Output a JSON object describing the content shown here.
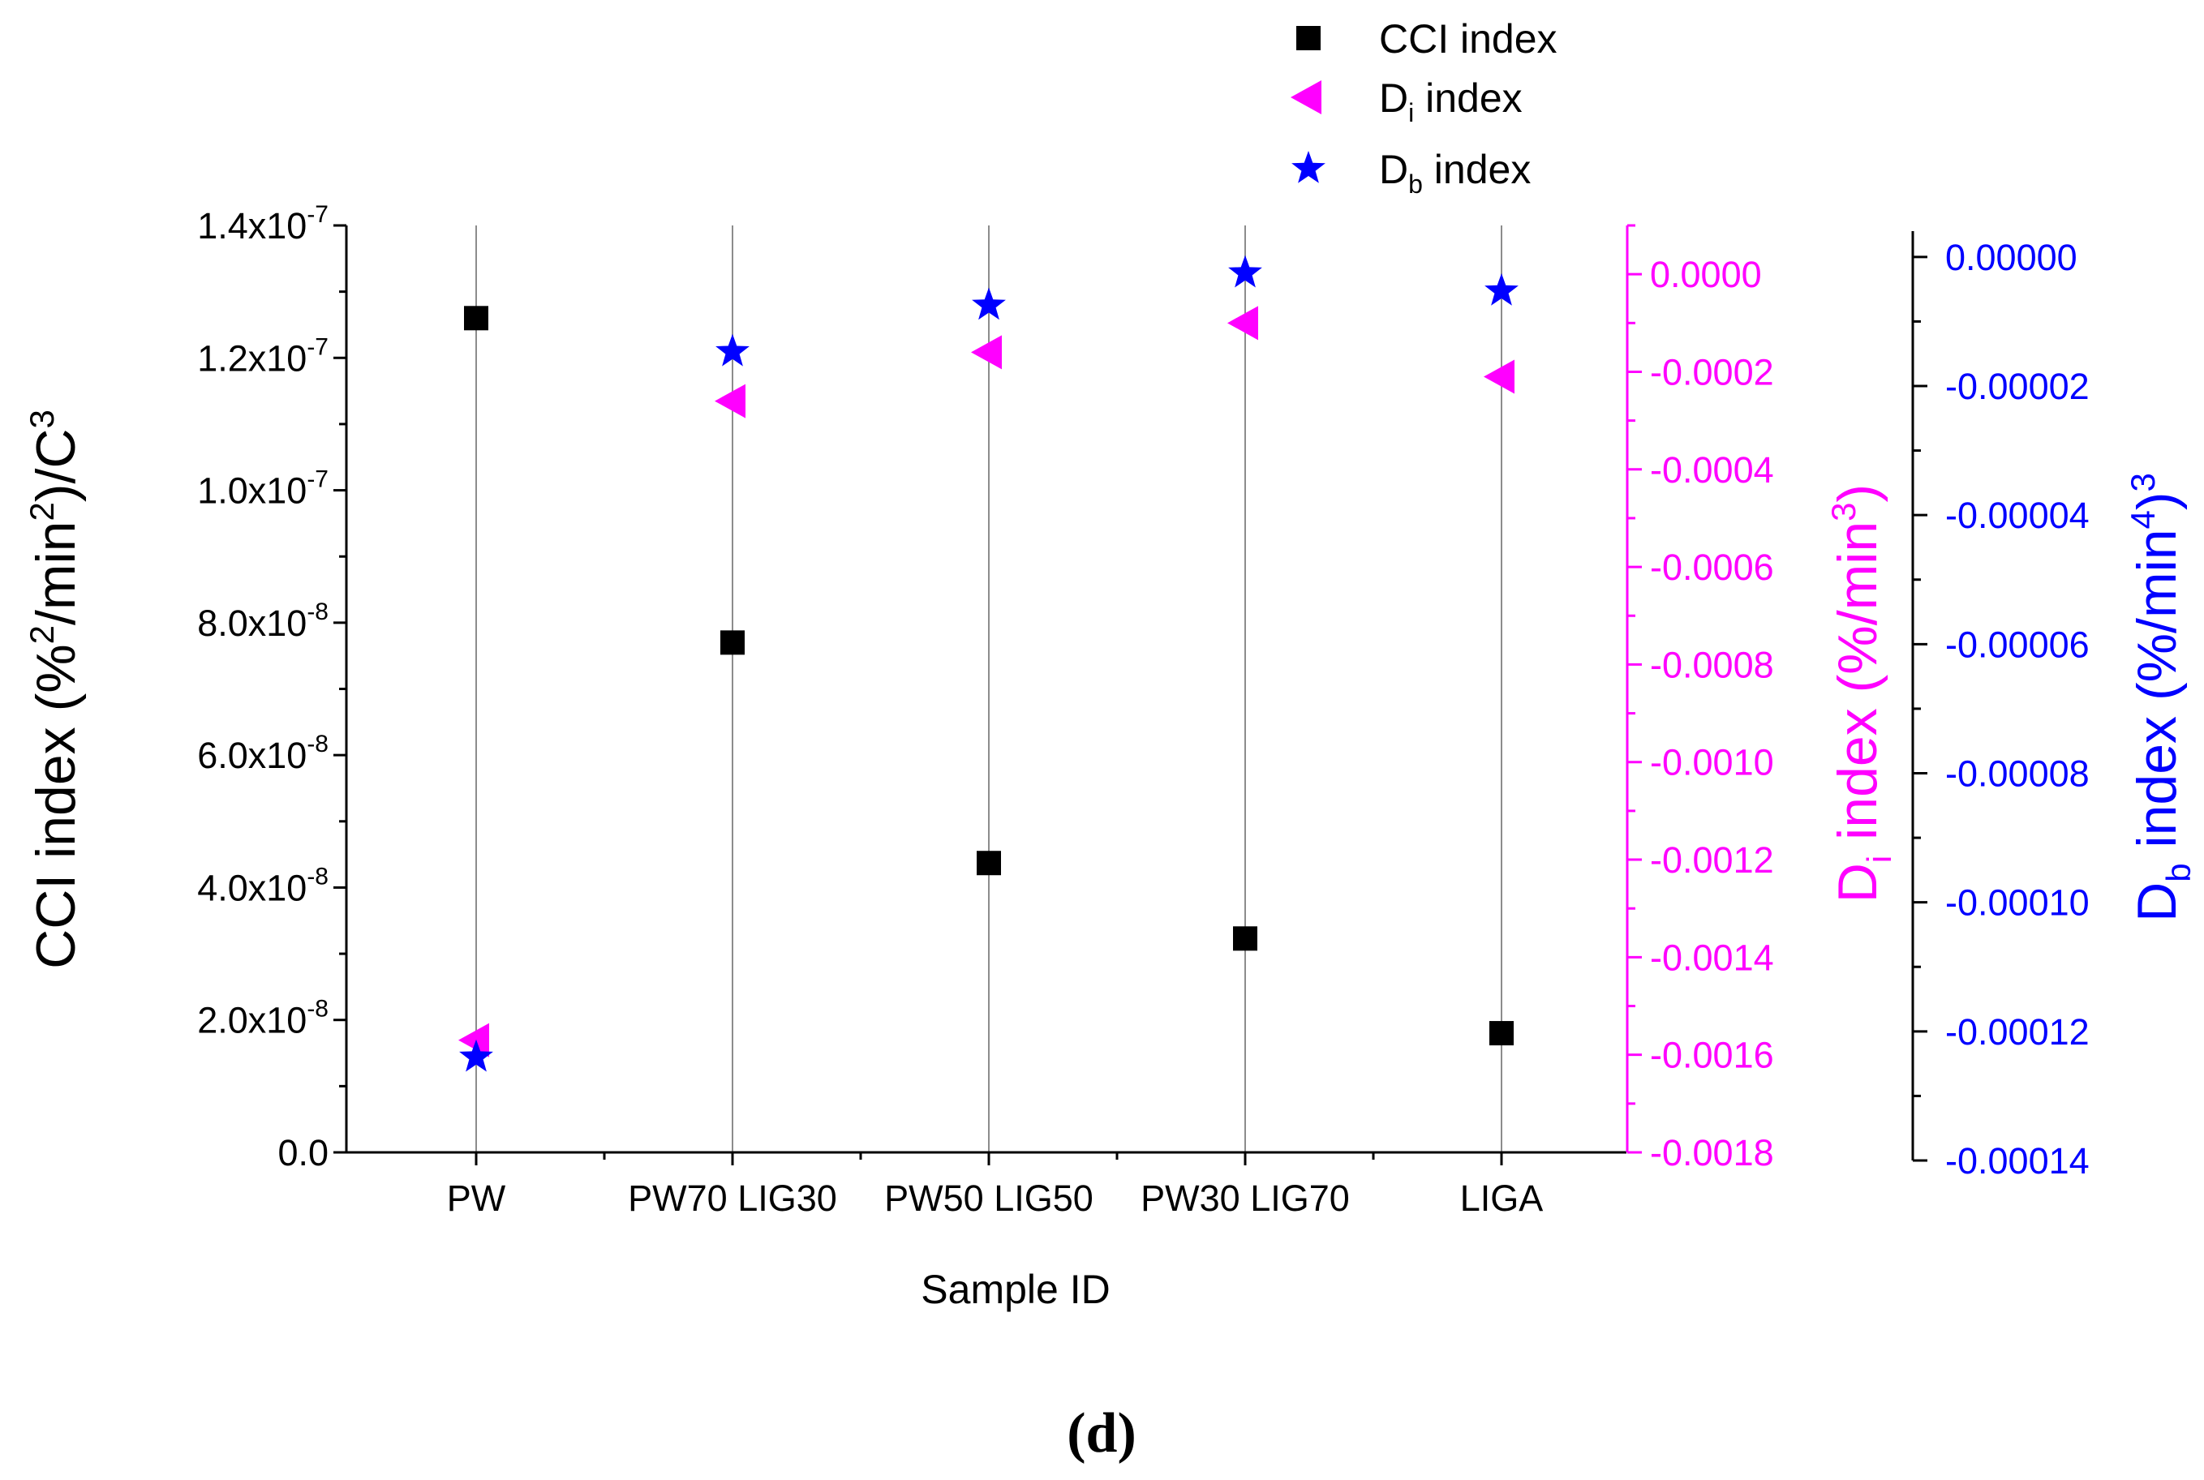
{
  "chart_data": {
    "type": "scatter",
    "categories": [
      "PW",
      "PW70 LIG30",
      "PW50 LIG50",
      "PW30 LIG70",
      "LIGA"
    ],
    "xlabel": "Sample ID",
    "panel_label": "(d)",
    "grid": "vertical lines at each category",
    "legend_position": "top-center",
    "axes": {
      "left": {
        "label": {
          "main": "CCI index (%",
          "sup1": "2",
          "mid": "/min",
          "sup2": "2",
          "end": ")/C",
          "sup3": "3"
        },
        "ylim": [
          0,
          1.4e-07
        ],
        "ticks": [
          {
            "value": 0,
            "text": "0.0",
            "exp": ""
          },
          {
            "value": 2e-08,
            "text": "2.0x10",
            "exp": "-8"
          },
          {
            "value": 4e-08,
            "text": "4.0x10",
            "exp": "-8"
          },
          {
            "value": 6e-08,
            "text": "6.0x10",
            "exp": "-8"
          },
          {
            "value": 8e-08,
            "text": "8.0x10",
            "exp": "-8"
          },
          {
            "value": 1e-07,
            "text": "1.0x10",
            "exp": "-7"
          },
          {
            "value": 1.2e-07,
            "text": "1.2x10",
            "exp": "-7"
          },
          {
            "value": 1.4e-07,
            "text": "1.4x10",
            "exp": "-7"
          }
        ],
        "color": "#000000"
      },
      "right1": {
        "label": {
          "main": "D",
          "sub": "i",
          "end": " index (%/min",
          "sup": "3",
          "close": ")"
        },
        "ylim": [
          -0.0018,
          0.0001
        ],
        "ticks": [
          {
            "value": 0,
            "text": "0.0000"
          },
          {
            "value": -0.0002,
            "text": "-0.0002"
          },
          {
            "value": -0.0004,
            "text": "-0.0004"
          },
          {
            "value": -0.0006,
            "text": "-0.0006"
          },
          {
            "value": -0.0008,
            "text": "-0.0008"
          },
          {
            "value": -0.001,
            "text": "-0.0010"
          },
          {
            "value": -0.0012,
            "text": "-0.0012"
          },
          {
            "value": -0.0014,
            "text": "-0.0014"
          },
          {
            "value": -0.0016,
            "text": "-0.0016"
          },
          {
            "value": -0.0018,
            "text": "-0.0018"
          }
        ],
        "color": "#ff00ff"
      },
      "right2": {
        "label": {
          "main": "D",
          "sub": "b",
          "end": " index (%/min",
          "sup": "4",
          "close": ")",
          "sup_close": "3"
        },
        "ylim": [
          -0.00014,
          4e-06
        ],
        "ticks": [
          {
            "value": 0,
            "text": "0.00000"
          },
          {
            "value": -2e-05,
            "text": "-0.00002"
          },
          {
            "value": -4e-05,
            "text": "-0.00004"
          },
          {
            "value": -6e-05,
            "text": "-0.00006"
          },
          {
            "value": -8e-05,
            "text": "-0.00008"
          },
          {
            "value": -0.0001,
            "text": "-0.00010"
          },
          {
            "value": -0.00012,
            "text": "-0.00012"
          },
          {
            "value": -0.00014,
            "text": "-0.00014"
          }
        ],
        "color": "#0000ff"
      }
    },
    "series": [
      {
        "name": "CCI index",
        "name_main": "CCI index",
        "name_sub": "",
        "name_end": "",
        "axis": "left",
        "marker": "square",
        "color": "#000000",
        "values": [
          1.26e-07,
          7.7e-08,
          4.37e-08,
          3.23e-08,
          1.8e-08
        ]
      },
      {
        "name": "Di index",
        "name_main": "D",
        "name_sub": "i",
        "name_end": " index",
        "axis": "right1",
        "marker": "triangle-left",
        "color": "#ff00ff",
        "values": [
          -0.00157,
          -0.00026,
          -0.00016,
          -0.0001,
          -0.00021
        ]
      },
      {
        "name": "Db index",
        "name_main": "D",
        "name_sub": "b",
        "name_end": " index",
        "axis": "right2",
        "marker": "star",
        "color": "#0000ff",
        "values": [
          -0.000124,
          -1.47e-05,
          -7.5e-06,
          -2.5e-06,
          -5.3e-06
        ]
      }
    ]
  }
}
